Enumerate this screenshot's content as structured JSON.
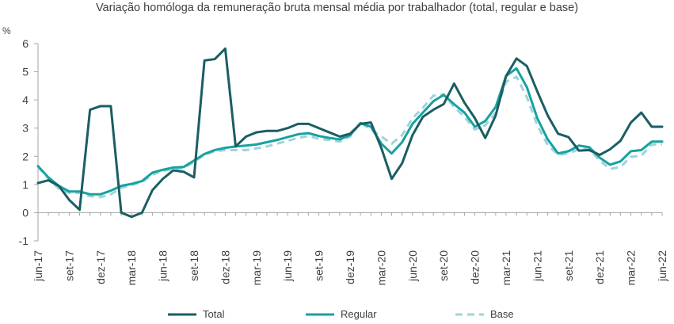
{
  "chart_data": {
    "type": "line",
    "title": "Variação homóloga da remuneração bruta mensal média por trabalhador (total, regular e base)",
    "ylabel": "%",
    "ylim": [
      -1,
      6
    ],
    "yticks": [
      -1,
      0,
      1,
      2,
      3,
      4,
      5,
      6
    ],
    "grid": false,
    "legend_position": "bottom",
    "x": [
      "jun-17",
      "jul-17",
      "ago-17",
      "set-17",
      "out-17",
      "nov-17",
      "dez-17",
      "jan-18",
      "fev-18",
      "mar-18",
      "abr-18",
      "mai-18",
      "jun-18",
      "jul-18",
      "ago-18",
      "set-18",
      "out-18",
      "nov-18",
      "dez-18",
      "jan-19",
      "fev-19",
      "mar-19",
      "abr-19",
      "mai-19",
      "jun-19",
      "jul-19",
      "ago-19",
      "set-19",
      "out-19",
      "nov-19",
      "dez-19",
      "jan-20",
      "fev-20",
      "mar-20",
      "abr-20",
      "mai-20",
      "jun-20",
      "jul-20",
      "ago-20",
      "set-20",
      "out-20",
      "nov-20",
      "dez-20",
      "jan-21",
      "fev-21",
      "mar-21",
      "abr-21",
      "mai-21",
      "jun-21",
      "jul-21",
      "ago-21",
      "set-21",
      "out-21",
      "nov-21",
      "dez-21",
      "jan-22",
      "fev-22",
      "mar-22",
      "abr-22",
      "mai-22",
      "jun-22"
    ],
    "x_tick_labels": [
      "jun-17",
      "set-17",
      "dez-17",
      "mar-18",
      "jun-18",
      "set-18",
      "dez-18",
      "mar-19",
      "jun-19",
      "set-19",
      "dez-19",
      "mar-20",
      "jun-20",
      "set-20",
      "dez-20",
      "mar-21",
      "jun-21",
      "set-21",
      "dez-21",
      "mar-22",
      "jun-22"
    ],
    "series": [
      {
        "name": "Total",
        "color": "#1b5e63",
        "style": "solid",
        "values": [
          1.05,
          1.15,
          0.95,
          0.45,
          0.1,
          3.65,
          3.78,
          3.78,
          0.0,
          -0.15,
          0.0,
          0.8,
          1.2,
          1.5,
          1.45,
          1.25,
          5.4,
          5.45,
          5.82,
          2.35,
          2.7,
          2.85,
          2.9,
          2.9,
          3.0,
          3.15,
          3.15,
          3.0,
          2.85,
          2.7,
          2.8,
          3.15,
          3.2,
          2.3,
          1.2,
          1.75,
          2.75,
          3.4,
          3.65,
          3.85,
          4.58,
          3.9,
          3.35,
          2.65,
          3.45,
          4.85,
          5.47,
          5.2,
          4.3,
          3.45,
          2.8,
          2.68,
          2.2,
          2.22,
          2.05,
          2.25,
          2.55,
          3.2,
          3.55,
          3.05,
          3.05
        ]
      },
      {
        "name": "Regular",
        "color": "#17a2a0",
        "style": "solid",
        "values": [
          1.65,
          1.25,
          0.95,
          0.75,
          0.75,
          0.65,
          0.65,
          0.78,
          0.95,
          1.02,
          1.12,
          1.42,
          1.52,
          1.6,
          1.62,
          1.85,
          2.08,
          2.22,
          2.3,
          2.35,
          2.38,
          2.42,
          2.5,
          2.58,
          2.68,
          2.78,
          2.82,
          2.72,
          2.65,
          2.6,
          2.75,
          3.18,
          3.05,
          2.45,
          2.1,
          2.5,
          3.15,
          3.55,
          3.95,
          4.18,
          3.85,
          3.55,
          3.05,
          3.25,
          3.75,
          4.85,
          5.12,
          4.45,
          3.35,
          2.6,
          2.1,
          2.18,
          2.38,
          2.32,
          1.95,
          1.7,
          1.82,
          2.18,
          2.22,
          2.52,
          2.52
        ]
      },
      {
        "name": "Base",
        "color": "#9fd3dc",
        "style": "dashed",
        "values": [
          1.62,
          1.2,
          0.85,
          0.7,
          0.7,
          0.58,
          0.55,
          0.65,
          0.88,
          0.98,
          1.08,
          1.35,
          1.48,
          1.55,
          1.58,
          1.8,
          2.05,
          2.18,
          2.22,
          2.22,
          2.22,
          2.28,
          2.35,
          2.45,
          2.55,
          2.65,
          2.72,
          2.62,
          2.58,
          2.52,
          2.7,
          3.2,
          2.95,
          2.7,
          2.45,
          2.75,
          3.35,
          3.72,
          4.15,
          4.2,
          3.75,
          3.4,
          2.95,
          3.1,
          3.55,
          4.65,
          4.82,
          4.1,
          3.1,
          2.4,
          2.05,
          2.1,
          2.25,
          2.25,
          1.85,
          1.55,
          1.62,
          1.98,
          2.02,
          2.42,
          2.42
        ]
      }
    ]
  }
}
